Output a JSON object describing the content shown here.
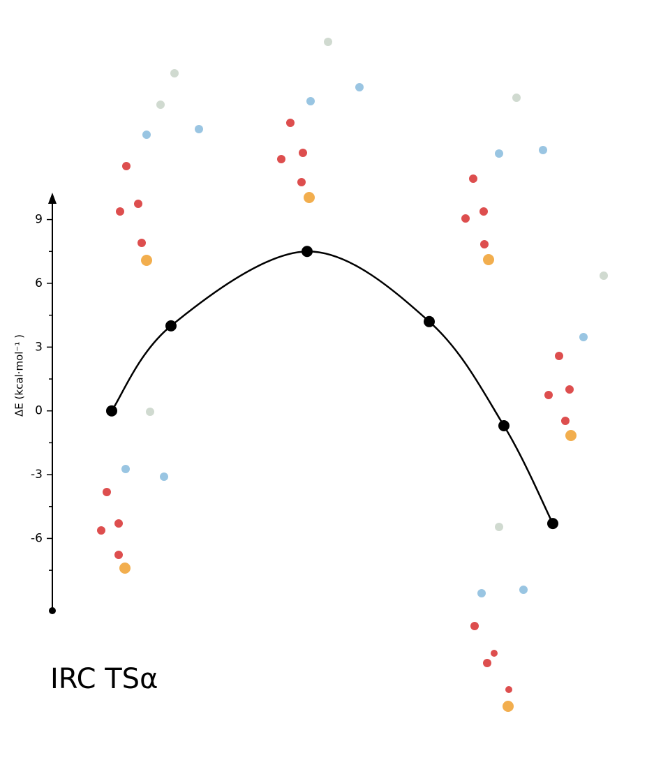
{
  "chart_data": {
    "type": "line",
    "title": "IRC TSα",
    "y_label": "ΔE (kcal·mol⁻¹ )",
    "x": [
      0.85,
      1.7,
      3.65,
      5.4,
      6.47,
      7.17
    ],
    "xlim": [
      0,
      8.52
    ],
    "series": [
      {
        "color": "#000000",
        "values": [
          0,
          4.0,
          7.5,
          4.2,
          -0.7,
          -5.3
        ]
      }
    ],
    "ylim": [
      -9.4,
      10.3
    ],
    "yticks": [
      9,
      6,
      3,
      0,
      -3,
      -6
    ],
    "minor_yticks": [
      7.5,
      4.5,
      1.5,
      -1.5,
      -4.5,
      -7.5
    ],
    "smooth": true
  }
}
